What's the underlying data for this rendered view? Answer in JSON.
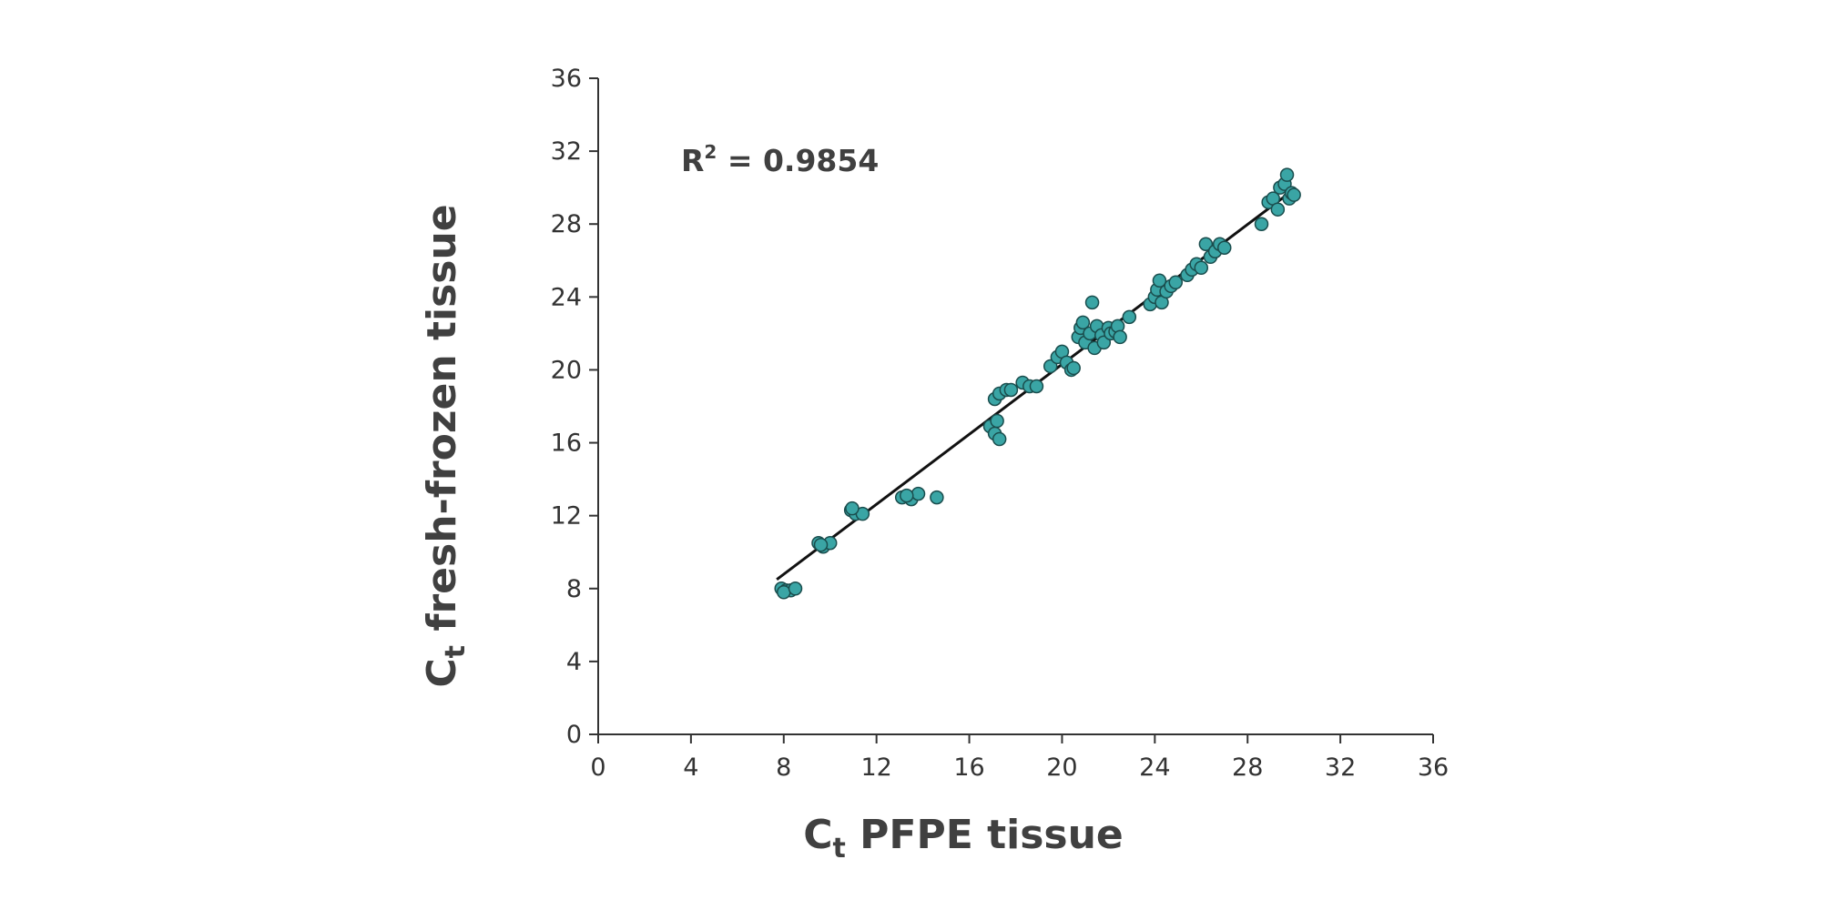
{
  "chart_data": {
    "type": "scatter",
    "title": "",
    "xlabel": {
      "main": "C",
      "sub": "t",
      "rest": " PFPE tissue"
    },
    "ylabel": {
      "main": "C",
      "sub": "t",
      "rest": " fresh-frozen tissue"
    },
    "xlim": [
      0,
      36
    ],
    "ylim": [
      0,
      36
    ],
    "xticks": [
      "0",
      "4",
      "8",
      "12",
      "16",
      "20",
      "24",
      "28",
      "32",
      "36"
    ],
    "yticks": [
      "0",
      "4",
      "8",
      "12",
      "16",
      "20",
      "24",
      "28",
      "32",
      "36"
    ],
    "grid": false,
    "legend": "none",
    "annotation": {
      "prefix": "R",
      "sup": "2",
      "rest": " = 0.9854"
    },
    "marker_fill": "#3aa5a5",
    "marker_edge": "#1a4d4d",
    "trendline_color": "#111111",
    "trendline": {
      "x": [
        7.7,
        30.0
      ],
      "y": [
        8.5,
        29.9
      ]
    },
    "points": [
      [
        7.9,
        8.0
      ],
      [
        8.1,
        7.9
      ],
      [
        8.3,
        7.9
      ],
      [
        8.0,
        7.8
      ],
      [
        8.5,
        8.0
      ],
      [
        9.5,
        10.5
      ],
      [
        9.7,
        10.3
      ],
      [
        10.0,
        10.5
      ],
      [
        9.6,
        10.4
      ],
      [
        10.9,
        12.3
      ],
      [
        11.1,
        12.1
      ],
      [
        11.4,
        12.1
      ],
      [
        10.95,
        12.4
      ],
      [
        13.1,
        13.0
      ],
      [
        13.5,
        12.9
      ],
      [
        13.8,
        13.2
      ],
      [
        14.6,
        13.0
      ],
      [
        13.3,
        13.1
      ],
      [
        16.9,
        16.9
      ],
      [
        17.1,
        16.5
      ],
      [
        17.2,
        17.2
      ],
      [
        17.3,
        16.2
      ],
      [
        17.1,
        18.4
      ],
      [
        17.3,
        18.7
      ],
      [
        17.6,
        18.9
      ],
      [
        17.8,
        18.9
      ],
      [
        18.3,
        19.3
      ],
      [
        18.6,
        19.1
      ],
      [
        18.9,
        19.1
      ],
      [
        19.5,
        20.2
      ],
      [
        19.8,
        20.7
      ],
      [
        20.0,
        21.0
      ],
      [
        20.2,
        20.4
      ],
      [
        20.4,
        20.0
      ],
      [
        20.5,
        20.1
      ],
      [
        20.7,
        21.8
      ],
      [
        20.8,
        22.3
      ],
      [
        20.9,
        22.6
      ],
      [
        21.0,
        21.5
      ],
      [
        21.2,
        22.0
      ],
      [
        21.3,
        23.7
      ],
      [
        21.4,
        21.2
      ],
      [
        21.5,
        22.4
      ],
      [
        21.7,
        21.9
      ],
      [
        21.8,
        21.5
      ],
      [
        22.0,
        22.3
      ],
      [
        22.1,
        22.0
      ],
      [
        22.3,
        22.1
      ],
      [
        22.4,
        22.4
      ],
      [
        22.5,
        21.8
      ],
      [
        22.9,
        22.9
      ],
      [
        23.8,
        23.6
      ],
      [
        24.0,
        24.0
      ],
      [
        24.1,
        24.4
      ],
      [
        24.2,
        24.9
      ],
      [
        24.3,
        23.7
      ],
      [
        24.5,
        24.3
      ],
      [
        24.7,
        24.6
      ],
      [
        24.9,
        24.8
      ],
      [
        25.4,
        25.2
      ],
      [
        25.6,
        25.5
      ],
      [
        25.8,
        25.8
      ],
      [
        26.0,
        25.6
      ],
      [
        26.2,
        26.9
      ],
      [
        26.4,
        26.2
      ],
      [
        26.6,
        26.5
      ],
      [
        26.8,
        26.9
      ],
      [
        27.0,
        26.7
      ],
      [
        28.6,
        28.0
      ],
      [
        28.9,
        29.2
      ],
      [
        29.1,
        29.4
      ],
      [
        29.3,
        28.8
      ],
      [
        29.4,
        30.0
      ],
      [
        29.6,
        30.2
      ],
      [
        29.7,
        30.7
      ],
      [
        29.8,
        29.4
      ],
      [
        29.9,
        29.7
      ],
      [
        30.0,
        29.6
      ]
    ]
  }
}
